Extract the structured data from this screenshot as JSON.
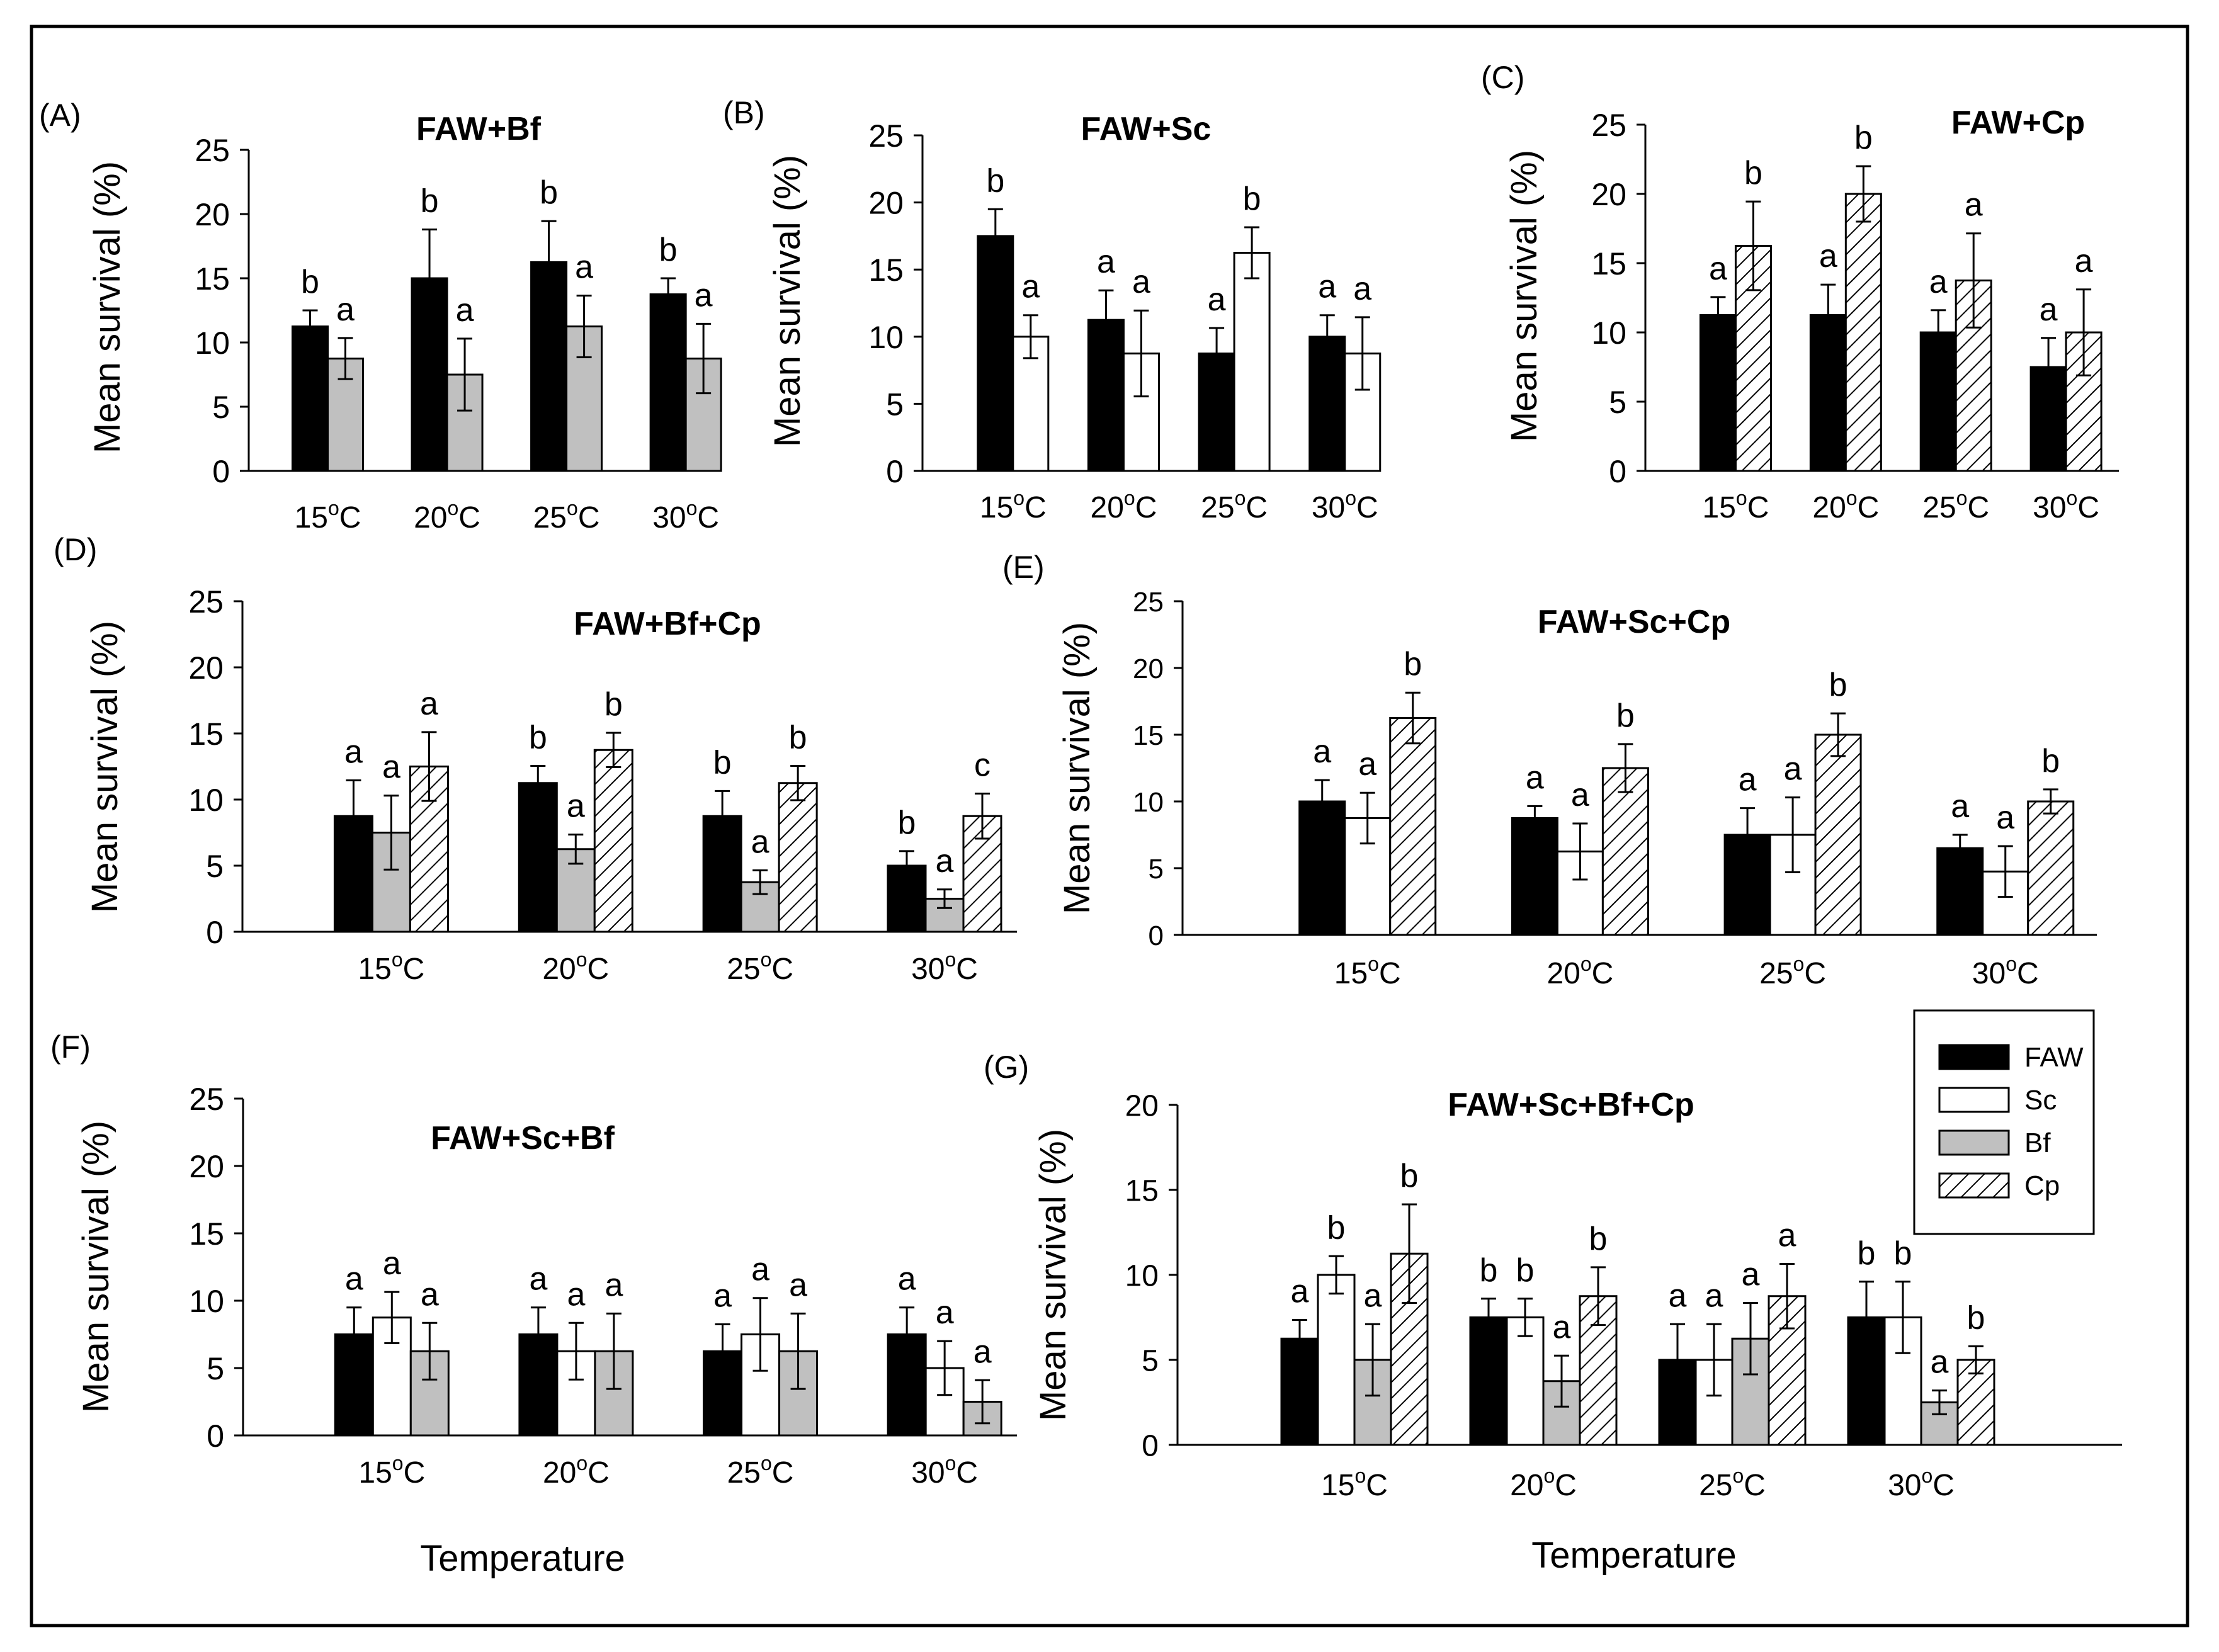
{
  "colors": {
    "FAW": "#000000",
    "Sc": "#ffffff",
    "Bf": "#c0c0c0",
    "Cp": "hatch"
  },
  "legend": {
    "items": [
      {
        "key": "FAW",
        "label": "FAW"
      },
      {
        "key": "Sc",
        "label": "Sc"
      },
      {
        "key": "Bf",
        "label": "Bf"
      },
      {
        "key": "Cp",
        "label": "Cp"
      }
    ]
  },
  "chart_data": [
    {
      "id": "A",
      "panel_label": "(A)",
      "title": "FAW+Bf",
      "type": "bar",
      "ylabel": "Mean survival (%)",
      "xlabel": "",
      "ylim": [
        0,
        25
      ],
      "yticks": [
        0,
        5,
        10,
        15,
        20,
        25
      ],
      "categories": [
        "15°C",
        "20°C",
        "25°C",
        "30°C"
      ],
      "series": [
        {
          "name": "FAW",
          "values": [
            11.25,
            15,
            16.25,
            13.75
          ],
          "errors": [
            1.25,
            3.8,
            3.2,
            1.25
          ],
          "letters": [
            "b",
            "b",
            "b",
            "b"
          ]
        },
        {
          "name": "Bf",
          "values": [
            8.75,
            7.5,
            11.25,
            8.75
          ],
          "errors": [
            1.6,
            2.8,
            2.4,
            2.7
          ],
          "letters": [
            "a",
            "a",
            "a",
            "a"
          ]
        }
      ]
    },
    {
      "id": "B",
      "panel_label": "(B)",
      "title": "FAW+Sc",
      "type": "bar",
      "ylabel": "Mean survival (%)",
      "xlabel": "",
      "ylim": [
        0,
        25
      ],
      "yticks": [
        0,
        5,
        10,
        15,
        20,
        25
      ],
      "categories": [
        "15°C",
        "20°C",
        "25°C",
        "30°C"
      ],
      "series": [
        {
          "name": "FAW",
          "values": [
            17.5,
            11.25,
            8.75,
            10
          ],
          "errors": [
            2,
            2.2,
            1.9,
            1.6
          ],
          "letters": [
            "b",
            "a",
            "a",
            "a"
          ]
        },
        {
          "name": "Sc",
          "values": [
            10,
            8.75,
            16.25,
            8.75
          ],
          "errors": [
            1.6,
            3.2,
            1.9,
            2.7
          ],
          "letters": [
            "a",
            "a",
            "b",
            "a"
          ]
        }
      ]
    },
    {
      "id": "C",
      "panel_label": "(C)",
      "title": "FAW+Cp",
      "type": "bar",
      "ylabel": "Mean survival (%)",
      "xlabel": "",
      "ylim": [
        0,
        25
      ],
      "yticks": [
        0,
        5,
        10,
        15,
        20,
        25
      ],
      "categories": [
        "15°C",
        "20°C",
        "25°C",
        "30°C"
      ],
      "series": [
        {
          "name": "FAW",
          "values": [
            11.25,
            11.25,
            10,
            7.5
          ],
          "errors": [
            1.3,
            2.2,
            1.6,
            2.1
          ],
          "letters": [
            "a",
            "a",
            "a",
            "a"
          ]
        },
        {
          "name": "Cp",
          "values": [
            16.25,
            20,
            13.75,
            10
          ],
          "errors": [
            3.2,
            2,
            3.4,
            3.1
          ],
          "letters": [
            "b",
            "b",
            "a",
            "a"
          ]
        }
      ]
    },
    {
      "id": "D",
      "panel_label": "(D)",
      "title": "FAW+Bf+Cp",
      "type": "bar",
      "ylabel": "Mean survival (%)",
      "xlabel": "",
      "ylim": [
        0,
        25
      ],
      "yticks": [
        0,
        5,
        10,
        15,
        20,
        25
      ],
      "categories": [
        "15°C",
        "20°C",
        "25°C",
        "30°C"
      ],
      "series": [
        {
          "name": "FAW",
          "values": [
            8.75,
            11.25,
            8.75,
            5
          ],
          "errors": [
            2.7,
            1.3,
            1.9,
            1.1
          ],
          "letters": [
            "a",
            "b",
            "b",
            "b"
          ]
        },
        {
          "name": "Bf",
          "values": [
            7.5,
            6.25,
            3.75,
            2.5
          ],
          "errors": [
            2.8,
            1.1,
            0.9,
            0.7
          ],
          "letters": [
            "a",
            "a",
            "a",
            "a"
          ]
        },
        {
          "name": "Cp",
          "values": [
            12.5,
            13.75,
            11.25,
            8.75
          ],
          "errors": [
            2.6,
            1.3,
            1.3,
            1.7
          ],
          "letters": [
            "a",
            "b",
            "b",
            "c"
          ]
        }
      ]
    },
    {
      "id": "E",
      "panel_label": "(E)",
      "title": "FAW+Sc+Cp",
      "type": "bar",
      "ylabel": "Mean survival (%)",
      "xlabel": "",
      "ylim": [
        0,
        25
      ],
      "yticks": [
        0,
        5,
        10,
        15,
        20,
        25
      ],
      "categories": [
        "15°C",
        "20°C",
        "25°C",
        "30°C"
      ],
      "series": [
        {
          "name": "FAW",
          "values": [
            10,
            8.75,
            7.5,
            6.5
          ],
          "errors": [
            1.6,
            0.9,
            2,
            1
          ],
          "letters": [
            "a",
            "a",
            "a",
            "a"
          ]
        },
        {
          "name": "Sc",
          "values": [
            8.75,
            6.25,
            7.5,
            4.75
          ],
          "errors": [
            1.9,
            2.1,
            2.8,
            1.9
          ],
          "letters": [
            "a",
            "a",
            "a",
            "a"
          ]
        },
        {
          "name": "Cp",
          "values": [
            16.25,
            12.5,
            15,
            10
          ],
          "errors": [
            1.9,
            1.8,
            1.6,
            0.9
          ],
          "letters": [
            "b",
            "b",
            "b",
            "b"
          ]
        }
      ]
    },
    {
      "id": "F",
      "panel_label": "(F)",
      "title": "FAW+Sc+Bf",
      "type": "bar",
      "ylabel": "Mean survival (%)",
      "xlabel": "Temperature",
      "ylim": [
        0,
        25
      ],
      "yticks": [
        0,
        5,
        10,
        15,
        20,
        25
      ],
      "categories": [
        "15°C",
        "20°C",
        "25°C",
        "30°C"
      ],
      "series": [
        {
          "name": "FAW",
          "values": [
            7.5,
            7.5,
            6.25,
            7.5
          ],
          "errors": [
            2,
            2,
            2,
            2
          ],
          "letters": [
            "a",
            "a",
            "a",
            "a"
          ]
        },
        {
          "name": "Sc",
          "values": [
            8.75,
            6.25,
            7.5,
            5
          ],
          "errors": [
            1.9,
            2.1,
            2.7,
            2
          ],
          "letters": [
            "a",
            "a",
            "a",
            "a"
          ]
        },
        {
          "name": "Bf",
          "values": [
            6.25,
            6.25,
            6.25,
            2.5
          ],
          "errors": [
            2.1,
            2.8,
            2.8,
            1.6
          ],
          "letters": [
            "a",
            "a",
            "a",
            "a"
          ]
        }
      ]
    },
    {
      "id": "G",
      "panel_label": "(G)",
      "title": "FAW+Sc+Bf+Cp",
      "type": "bar",
      "ylabel": "Mean survival (%)",
      "xlabel": "Temperature",
      "ylim": [
        0,
        20
      ],
      "yticks": [
        0,
        5,
        10,
        15,
        20
      ],
      "categories": [
        "15°C",
        "20°C",
        "25°C",
        "30°C"
      ],
      "series": [
        {
          "name": "FAW",
          "values": [
            6.25,
            7.5,
            5,
            7.5
          ],
          "errors": [
            1.1,
            1.1,
            2.1,
            2.1
          ],
          "letters": [
            "a",
            "b",
            "a",
            "b"
          ]
        },
        {
          "name": "Sc",
          "values": [
            10,
            7.5,
            5,
            7.5
          ],
          "errors": [
            1.1,
            1.1,
            2.1,
            2.1
          ],
          "letters": [
            "b",
            "b",
            "a",
            "b"
          ]
        },
        {
          "name": "Bf",
          "values": [
            5,
            3.75,
            6.25,
            2.5
          ],
          "errors": [
            2.1,
            1.5,
            2.1,
            0.7
          ],
          "letters": [
            "a",
            "a",
            "a",
            "a"
          ]
        },
        {
          "name": "Cp",
          "values": [
            11.25,
            8.75,
            8.75,
            5
          ],
          "errors": [
            2.9,
            1.7,
            1.9,
            0.8
          ],
          "letters": [
            "b",
            "b",
            "a",
            "b"
          ]
        }
      ]
    }
  ]
}
